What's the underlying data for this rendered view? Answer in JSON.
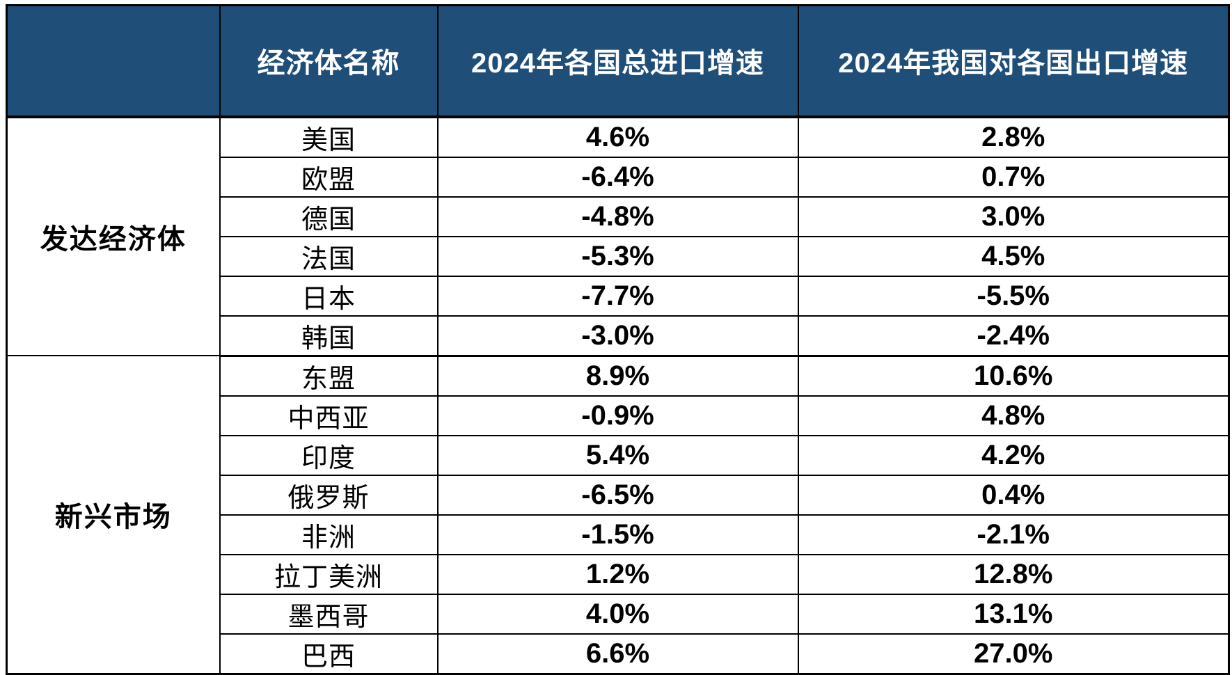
{
  "colors": {
    "header_bg": "#1F4E79",
    "header_text": "#FFFFFF",
    "border": "#000000",
    "body_bg": "#FFFFFF",
    "body_text": "#000000"
  },
  "chart_data": {
    "type": "table",
    "title": "",
    "columns": [
      {
        "label": ""
      },
      {
        "label": "经济体名称"
      },
      {
        "label": "2024年各国总进口增速"
      },
      {
        "label": "2024年我国对各国出口增速"
      }
    ],
    "groups": [
      {
        "label": "发达经济体",
        "rows": [
          {
            "name": "美国",
            "import_growth": "4.6%",
            "export_growth": "2.8%"
          },
          {
            "name": "欧盟",
            "import_growth": "-6.4%",
            "export_growth": "0.7%"
          },
          {
            "name": "德国",
            "import_growth": "-4.8%",
            "export_growth": "3.0%"
          },
          {
            "name": "法国",
            "import_growth": "-5.3%",
            "export_growth": "4.5%"
          },
          {
            "name": "日本",
            "import_growth": "-7.7%",
            "export_growth": "-5.5%"
          },
          {
            "name": "韩国",
            "import_growth": "-3.0%",
            "export_growth": "-2.4%"
          }
        ]
      },
      {
        "label": "新兴市场",
        "rows": [
          {
            "name": "东盟",
            "import_growth": "8.9%",
            "export_growth": "10.6%"
          },
          {
            "name": "中西亚",
            "import_growth": "-0.9%",
            "export_growth": "4.8%"
          },
          {
            "name": "印度",
            "import_growth": "5.4%",
            "export_growth": "4.2%"
          },
          {
            "name": "俄罗斯",
            "import_growth": "-6.5%",
            "export_growth": "0.4%"
          },
          {
            "name": "非洲",
            "import_growth": "-1.5%",
            "export_growth": "-2.1%"
          },
          {
            "name": "拉丁美洲",
            "import_growth": "1.2%",
            "export_growth": "12.8%"
          },
          {
            "name": "墨西哥",
            "import_growth": "4.0%",
            "export_growth": "13.1%"
          },
          {
            "name": "巴西",
            "import_growth": "6.6%",
            "export_growth": "27.0%"
          }
        ]
      }
    ]
  }
}
